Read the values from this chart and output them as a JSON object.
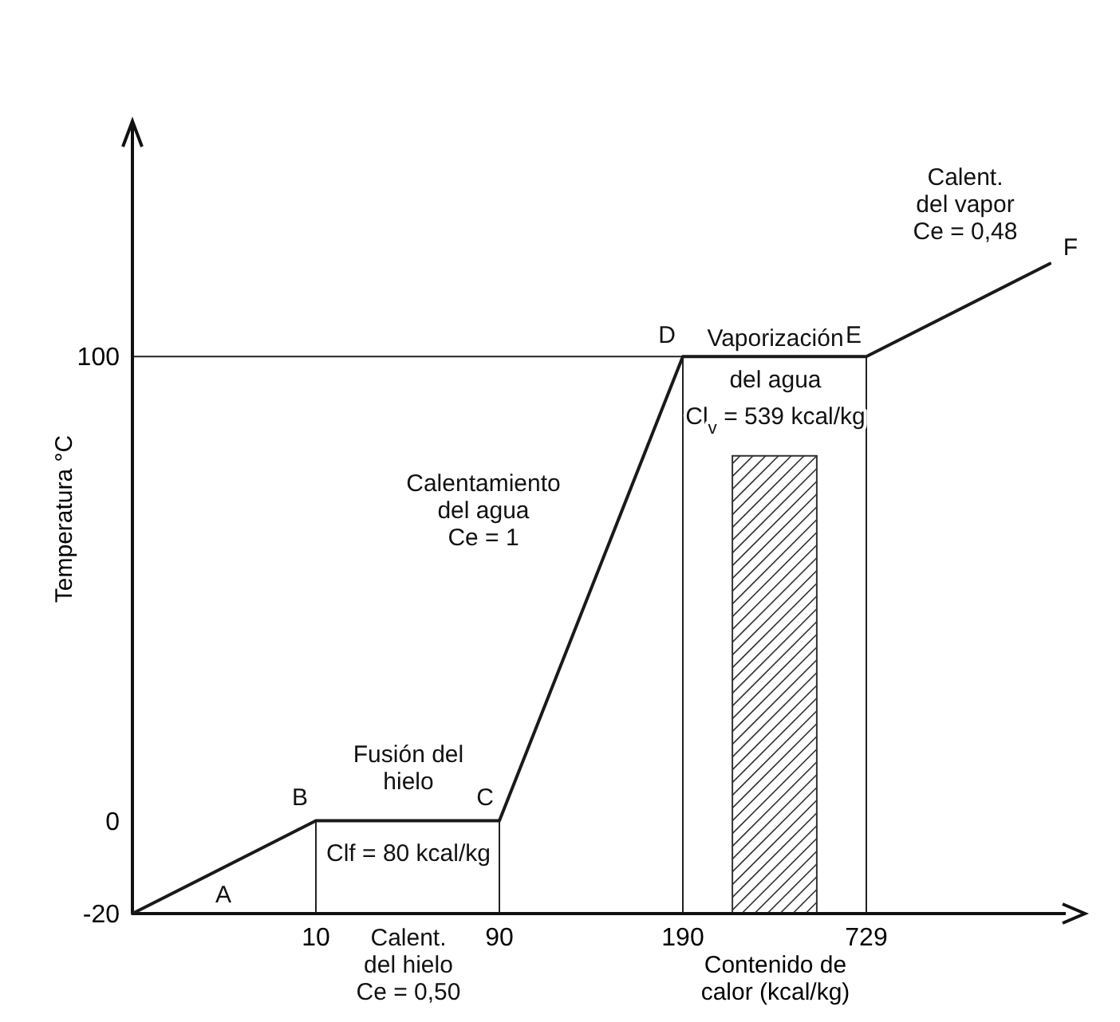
{
  "chart_data": {
    "type": "line",
    "xlabel": "Contenido de\ncalor (kcal/kg)",
    "ylabel": "Temperatura °C",
    "categories": [
      null,
      "10",
      "90",
      "190",
      "729",
      null
    ],
    "series": [
      {
        "color": "#1a1a1a",
        "values": [
          -20,
          0,
          0,
          100,
          100,
          120
        ]
      }
    ],
    "ylim": [
      -20,
      150
    ],
    "yticks": [
      -20,
      0,
      100
    ],
    "grid": false,
    "ref_lines": [
      {
        "axis": "y",
        "value": 100
      },
      {
        "axis": "x",
        "value": "10"
      },
      {
        "axis": "x",
        "value": "90"
      },
      {
        "axis": "x",
        "value": "190"
      },
      {
        "axis": "x",
        "value": "729"
      }
    ],
    "annotations": [
      "A",
      "B",
      "C",
      "D",
      "E",
      "F",
      "Fusión del\nhielo",
      "Clf = 80 kcal/kg",
      "Calentamiento\ndel agua\nCe = 1",
      "Vaporización\ndel agua",
      "Cl$_{v}$ = 539 kcal/kg",
      "Calent.\ndel vapor\nCe = 0,48",
      "Calent.\ndel hielo\nCe = 0,50"
    ]
  }
}
